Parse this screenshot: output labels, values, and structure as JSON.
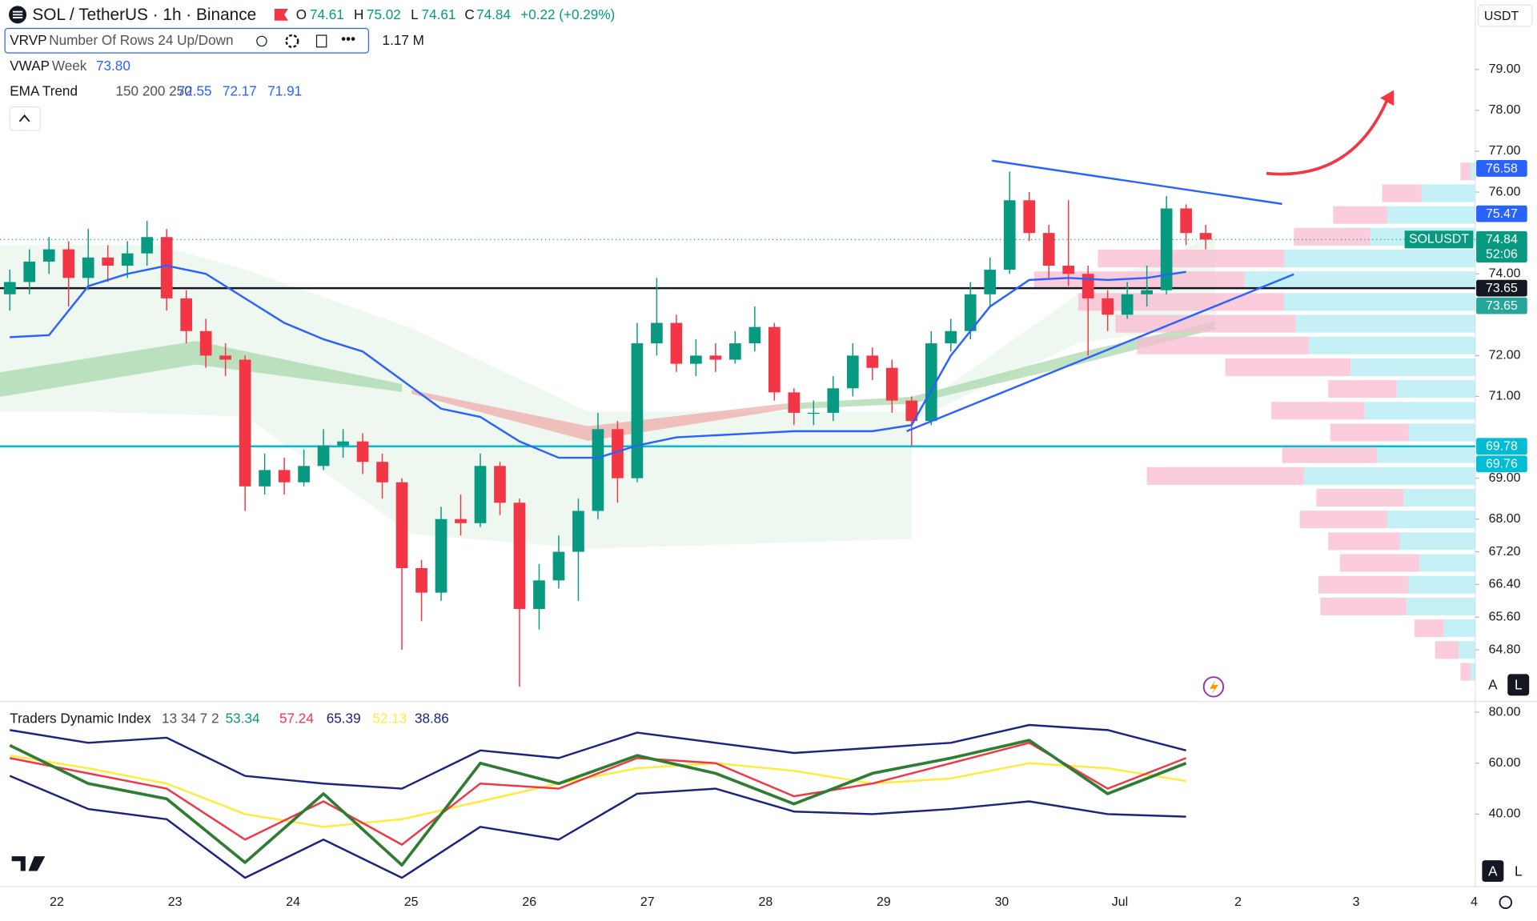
{
  "header": {
    "symbol": "SOL / TetherUS · 1h · Binance",
    "o_label": "O",
    "o": "74.61",
    "h_label": "H",
    "h": "75.02",
    "l_label": "L",
    "l": "74.61",
    "c_label": "C",
    "c": "74.84",
    "change": "+0.22 (+0.29%)",
    "currency": "USDT"
  },
  "indicators": {
    "vrvp": {
      "name": "VRVP",
      "params": "Number Of Rows 24 Up/Down",
      "total": "1.17 M"
    },
    "vwap": {
      "name": "VWAP",
      "params": "Week",
      "value": "73.80"
    },
    "ema": {
      "name": "EMA Trend",
      "params": "150 200 250",
      "values": [
        "72.55",
        "72.17",
        "71.91"
      ]
    },
    "tdi": {
      "name": "Traders Dynamic Index",
      "params": "13 34 7 2",
      "values": [
        "53.34",
        "57.24",
        "65.39",
        "52.13",
        "38.86"
      ],
      "colors": [
        "#089981",
        "#f23645",
        "#1a237e",
        "#ffeb3b",
        "#1a237e"
      ]
    }
  },
  "buttons": {
    "auto": "A",
    "log": "L"
  },
  "chart_data": {
    "type": "candlestick",
    "open": [
      73.5,
      73.8,
      74.3,
      74.6,
      73.9,
      74.4,
      74.2,
      74.5,
      74.9,
      73.4,
      72.6,
      72.0,
      71.9,
      68.8,
      69.2,
      68.9,
      69.3,
      69.8,
      69.9,
      69.4,
      68.9,
      66.8,
      66.2,
      68.0,
      67.9,
      69.3,
      68.4,
      65.8,
      66.5,
      67.2,
      68.2,
      70.2,
      69.0,
      72.3,
      72.8,
      71.8,
      72.0,
      71.9,
      72.3,
      72.7,
      71.1,
      70.6,
      70.6,
      71.2,
      72.0,
      71.7,
      70.9,
      70.4,
      72.3,
      72.6,
      73.5,
      74.1,
      75.8,
      75.0,
      74.2,
      74.0,
      73.4,
      73.0,
      73.5,
      73.6,
      75.6,
      75.0
    ],
    "high": [
      74.1,
      74.6,
      74.9,
      74.8,
      75.1,
      74.7,
      74.8,
      75.3,
      75.1,
      73.6,
      72.9,
      72.3,
      72.0,
      69.6,
      69.5,
      69.7,
      70.2,
      70.2,
      70.1,
      69.6,
      69.0,
      67.0,
      68.3,
      68.6,
      69.6,
      69.4,
      68.5,
      66.9,
      67.6,
      68.5,
      70.6,
      70.4,
      72.8,
      73.9,
      73.0,
      72.4,
      72.3,
      72.6,
      73.2,
      72.8,
      71.2,
      70.9,
      71.5,
      72.3,
      72.2,
      71.9,
      71.0,
      72.6,
      72.9,
      73.8,
      74.4,
      76.5,
      76.0,
      75.2,
      75.8,
      74.2,
      73.6,
      73.8,
      74.2,
      75.9,
      75.7,
      75.2
    ],
    "low": [
      73.1,
      73.5,
      74.0,
      73.2,
      73.6,
      73.8,
      73.9,
      74.2,
      73.1,
      72.3,
      71.7,
      71.5,
      68.2,
      68.6,
      68.6,
      68.8,
      69.2,
      69.5,
      69.1,
      68.5,
      64.8,
      65.5,
      66.0,
      67.6,
      67.8,
      68.1,
      63.9,
      65.3,
      66.3,
      66.0,
      68.0,
      68.4,
      68.9,
      72.0,
      71.6,
      71.5,
      71.6,
      71.8,
      72.1,
      70.9,
      70.3,
      70.3,
      70.4,
      71.0,
      71.4,
      70.6,
      69.8,
      70.3,
      72.1,
      72.4,
      73.2,
      74.0,
      74.8,
      73.9,
      73.7,
      72.0,
      72.6,
      72.9,
      73.2,
      73.5,
      74.7,
      74.6
    ],
    "close": [
      73.8,
      74.3,
      74.6,
      73.9,
      74.4,
      74.2,
      74.5,
      74.9,
      73.4,
      72.6,
      72.0,
      71.9,
      68.8,
      69.2,
      68.9,
      69.3,
      69.8,
      69.9,
      69.4,
      68.9,
      66.8,
      66.2,
      68.0,
      67.9,
      69.3,
      68.4,
      65.8,
      66.5,
      67.2,
      68.2,
      70.2,
      69.0,
      72.3,
      72.8,
      71.8,
      72.0,
      71.9,
      72.3,
      72.7,
      71.1,
      70.6,
      70.6,
      71.2,
      72.0,
      71.7,
      70.9,
      70.4,
      72.3,
      72.6,
      73.5,
      74.1,
      75.8,
      75.0,
      74.2,
      74.0,
      73.4,
      73.0,
      73.5,
      73.6,
      75.6,
      75.0,
      74.84
    ],
    "colors": {
      "up": "#089981",
      "down": "#f23645"
    },
    "ylim": [
      63.56,
      80.7
    ],
    "yticks": [
      {
        "value": 64.8,
        "label": "64.80"
      },
      {
        "value": 65.6,
        "label": "65.60"
      },
      {
        "value": 66.4,
        "label": "66.40"
      },
      {
        "value": 67.2,
        "label": "67.20"
      },
      {
        "value": 68,
        "label": "68.00"
      },
      {
        "value": 69,
        "label": "69.00"
      },
      {
        "value": 71,
        "label": "71.00"
      },
      {
        "value": 72,
        "label": "72.00"
      },
      {
        "value": 74,
        "label": "74.00"
      },
      {
        "value": 76,
        "label": "76.00"
      },
      {
        "value": 77,
        "label": "77.00"
      },
      {
        "value": 78,
        "label": "78.00"
      },
      {
        "value": 79,
        "label": "79.00"
      }
    ],
    "xticks": [
      "22",
      "23",
      "24",
      "25",
      "26",
      "27",
      "28",
      "29",
      "30",
      "Jul",
      "2",
      "3",
      "4"
    ],
    "vwap": {
      "color": "#2962ff",
      "values": [
        72.45,
        72.5,
        73.7,
        74.0,
        74.2,
        74.0,
        73.4,
        72.8,
        72.4,
        72.1,
        71.4,
        70.7,
        70.5,
        69.9,
        69.5,
        69.5,
        69.8,
        70.0,
        70.05,
        70.1,
        70.15,
        70.15,
        70.15,
        70.3,
        72.0,
        73.2,
        73.85,
        73.9,
        73.85,
        73.9,
        74.05
      ]
    },
    "levels": [
      {
        "value": 73.65,
        "color": "#131722"
      },
      {
        "value": 69.78,
        "color": "#00bcd4"
      }
    ],
    "trendlines": [
      {
        "from": [
          50.1,
          76.77
        ],
        "to": [
          64.9,
          75.71
        ],
        "color": "#2962ff"
      },
      {
        "from": [
          45.75,
          70.15
        ],
        "to": [
          65.5,
          73.99
        ],
        "color": "#2962ff"
      }
    ],
    "price_tags": [
      {
        "value": 76.58,
        "color": "#2962ff"
      },
      {
        "value": 75.47,
        "color": "#2962ff"
      },
      {
        "value": 74.84,
        "color": "#089981"
      },
      {
        "value": 73.65,
        "color": "#131722"
      },
      {
        "value": 73.65,
        "color": "#26a69a"
      },
      {
        "value": 69.78,
        "color": "#00bcd4"
      },
      {
        "value": 69.76,
        "color": "#00bcd4"
      }
    ],
    "symbol_tag": "SOLUSDT",
    "countdown": "52:06",
    "profile": {
      "up": [
        5,
        55,
        90,
        107,
        195,
        235,
        195,
        183,
        170,
        127,
        80,
        113,
        68,
        100,
        175,
        73,
        90,
        77,
        57,
        68,
        70,
        32,
        17,
        5
      ],
      "down": [
        10,
        40,
        55,
        78,
        190,
        215,
        210,
        184,
        175,
        128,
        70,
        95,
        80,
        97,
        160,
        89,
        89,
        73,
        81,
        92,
        88,
        30,
        24,
        10
      ],
      "up_color": "#b2ebf2",
      "down_color": "#f8bbd0"
    },
    "tdi": {
      "ylim": [
        11.5,
        84.2
      ],
      "yticks": [
        {
          "value": 80,
          "label": "80.00"
        },
        {
          "value": 60,
          "label": "60.00"
        },
        {
          "value": 40,
          "label": "40.00"
        }
      ],
      "series": [
        {
          "color": "#1a237e",
          "values": [
            73,
            68,
            70,
            55,
            52,
            50,
            65,
            62,
            72,
            68,
            64,
            66,
            68,
            75,
            73,
            65
          ]
        },
        {
          "color": "#1a237e",
          "values": [
            55,
            42,
            38,
            15,
            30,
            15,
            35,
            30,
            48,
            50,
            41,
            40,
            42,
            45,
            40,
            39
          ]
        },
        {
          "color": "#ffeb3b",
          "values": [
            63,
            58,
            52,
            40,
            35,
            38,
            45,
            52,
            58,
            60,
            57,
            52,
            54,
            60,
            58,
            53
          ]
        },
        {
          "color": "#f23645",
          "values": [
            62,
            56,
            50,
            30,
            45,
            28,
            52,
            50,
            62,
            60,
            47,
            52,
            60,
            68,
            50,
            62
          ]
        },
        {
          "color": "#2e7d32",
          "values": [
            67,
            52,
            46,
            21,
            48,
            20,
            60,
            52,
            63,
            56,
            44,
            56,
            62,
            69,
            48,
            60
          ]
        }
      ]
    }
  }
}
